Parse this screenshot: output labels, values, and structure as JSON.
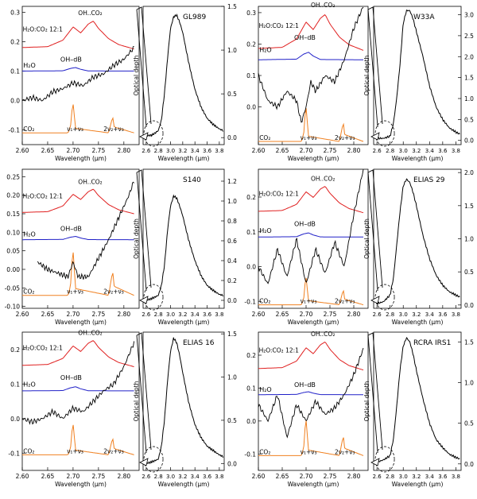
{
  "chart_data": {
    "type": "line",
    "common": {
      "x_label": "Wavelength (μm)",
      "y2_label": "Optical depth",
      "left_xlim": [
        2.6,
        2.83
      ],
      "left_xticks": [
        "2.60",
        "2.65",
        "2.70",
        "2.75",
        "2.80"
      ],
      "right_xlim": [
        2.55,
        3.88
      ],
      "right_xticks": [
        "2.6",
        "2.8",
        "3.0",
        "3.2",
        "3.4",
        "3.6",
        "3.8"
      ],
      "annotations": {
        "mixture": "H₂O:CO₂ 12:1",
        "complex": "OH..CO₂",
        "dangling": "OH–dB",
        "water": "H₂O",
        "co2": "CO₂",
        "nu1nu3": "ν₁+ν₃",
        "nu2": "2ν₂+ν₃"
      },
      "lab_series": [
        {
          "name": "H₂O:CO₂ 12:1",
          "color": "#e02020",
          "x": [
            2.6,
            2.65,
            2.68,
            2.7,
            2.715,
            2.73,
            2.74,
            2.75,
            2.77,
            2.79,
            2.82
          ],
          "shape": [
            0.05,
            0.08,
            0.3,
            0.75,
            0.55,
            0.85,
            0.95,
            0.7,
            0.35,
            0.15,
            0.0
          ]
        },
        {
          "name": "H₂O",
          "color": "#2020c8",
          "x": [
            2.6,
            2.68,
            2.695,
            2.705,
            2.715,
            2.73,
            2.82
          ],
          "shape": [
            0,
            0.05,
            0.45,
            0.6,
            0.3,
            0.02,
            0
          ]
        },
        {
          "name": "CO₂",
          "color": "#f08020",
          "x": [
            2.6,
            2.69,
            2.695,
            2.698,
            2.7,
            2.705,
            2.77,
            2.775,
            2.778,
            2.781,
            2.82
          ],
          "shape": [
            0,
            0,
            0.2,
            0.8,
            1,
            0.15,
            0,
            0.35,
            0.55,
            0.2,
            0
          ]
        }
      ]
    },
    "panels": [
      {
        "name": "GL989",
        "ylim": [
          -0.15,
          0.32
        ],
        "yticks": [
          "-0.1",
          "0.0",
          "0.1",
          "0.2",
          "0.3"
        ],
        "y2lim": [
          -0.08,
          1.5
        ],
        "y2ticks": [
          "0.0",
          "0.5",
          "1.0",
          "1.5"
        ],
        "offsets": {
          "mixture": 0.175,
          "water": 0.1,
          "co2": -0.11
        },
        "scales": {
          "mixture": 0.1,
          "water": 0.02,
          "co2": 0.1
        },
        "obs_x": [
          2.6,
          2.62,
          2.64,
          2.66,
          2.68,
          2.7,
          2.72,
          2.74,
          2.76,
          2.78,
          2.8,
          2.81,
          2.82
        ],
        "obs_y": [
          0.0,
          0.01,
          0.0,
          0.03,
          0.04,
          0.06,
          0.05,
          0.08,
          0.09,
          0.12,
          0.14,
          0.16,
          0.18
        ],
        "full_x": [
          2.6,
          2.7,
          2.8,
          2.85,
          2.9,
          2.95,
          3.0,
          3.05,
          3.1,
          3.15,
          3.2,
          3.3,
          3.4,
          3.5,
          3.6,
          3.7,
          3.8,
          3.86
        ],
        "full_y": [
          0.02,
          0.03,
          0.08,
          0.2,
          0.5,
          0.9,
          1.25,
          1.38,
          1.4,
          1.32,
          1.2,
          0.85,
          0.55,
          0.35,
          0.22,
          0.15,
          0.1,
          0.08
        ]
      },
      {
        "name": "W33A",
        "ylim": [
          -0.12,
          0.32
        ],
        "yticks": [
          "0.0",
          "0.1",
          "0.2",
          "0.3"
        ],
        "y2lim": [
          -0.1,
          3.2
        ],
        "y2ticks": [
          "0.0",
          "0.5",
          "1.0",
          "1.5",
          "2.0",
          "2.5",
          "3.0"
        ],
        "offsets": {
          "mixture": 0.18,
          "water": 0.15,
          "co2": -0.11
        },
        "scales": {
          "mixture": 0.12,
          "water": 0.04,
          "co2": 0.11
        },
        "obs_x": [
          2.6,
          2.62,
          2.64,
          2.66,
          2.68,
          2.69,
          2.7,
          2.71,
          2.72,
          2.74,
          2.76,
          2.78,
          2.8,
          2.82
        ],
        "obs_y": [
          0.1,
          0.02,
          0.0,
          0.05,
          0.02,
          -0.05,
          0.0,
          0.08,
          0.05,
          0.1,
          0.08,
          0.15,
          0.25,
          0.32
        ],
        "full_x": [
          2.6,
          2.7,
          2.8,
          2.85,
          2.9,
          2.95,
          3.0,
          3.05,
          3.1,
          3.15,
          3.2,
          3.3,
          3.4,
          3.5,
          3.6,
          3.7,
          3.8,
          3.86
        ],
        "full_y": [
          0.05,
          0.05,
          0.1,
          0.4,
          1.0,
          1.8,
          2.8,
          3.1,
          3.1,
          2.9,
          2.6,
          2.0,
          1.3,
          0.8,
          0.5,
          0.3,
          0.2,
          0.15
        ]
      },
      {
        "name": "S140",
        "ylim": [
          -0.105,
          0.27
        ],
        "yticks": [
          "-0.10",
          "-0.05",
          "0.00",
          "0.05",
          "0.10",
          "0.15",
          "0.20",
          "0.25"
        ],
        "y2lim": [
          -0.08,
          1.32
        ],
        "y2ticks": [
          "0.0",
          "0.2",
          "0.4",
          "0.6",
          "0.8",
          "1.0",
          "1.2"
        ],
        "offsets": {
          "mixture": 0.15,
          "water": 0.08,
          "co2": -0.07
        },
        "scales": {
          "mixture": 0.07,
          "water": 0.015,
          "co2": 0.12
        },
        "obs_x": [
          2.63,
          2.65,
          2.67,
          2.69,
          2.7,
          2.71,
          2.73,
          2.75,
          2.77,
          2.79,
          2.81,
          2.82
        ],
        "obs_y": [
          0.02,
          0.0,
          -0.01,
          -0.02,
          0.02,
          -0.02,
          -0.02,
          0.03,
          0.08,
          0.14,
          0.2,
          0.24
        ],
        "full_x": [
          2.6,
          2.7,
          2.8,
          2.85,
          2.9,
          2.95,
          3.0,
          3.05,
          3.1,
          3.15,
          3.2,
          3.3,
          3.4,
          3.5,
          3.6,
          3.7,
          3.8,
          3.86
        ],
        "full_y": [
          0.0,
          0.02,
          0.05,
          0.15,
          0.35,
          0.7,
          0.95,
          1.05,
          1.03,
          0.95,
          0.85,
          0.6,
          0.4,
          0.25,
          0.15,
          0.1,
          0.06,
          0.05
        ]
      },
      {
        "name": "ELIAS 29",
        "ylim": [
          -0.12,
          0.28
        ],
        "yticks": [
          "-0.1",
          "0.0",
          "0.1",
          "0.2"
        ],
        "y2lim": [
          -0.05,
          2.05
        ],
        "y2ticks": [
          "0.0",
          "0.5",
          "1.0",
          "1.5",
          "2.0"
        ],
        "offsets": {
          "mixture": 0.155,
          "water": 0.085,
          "co2": -0.11
        },
        "scales": {
          "mixture": 0.08,
          "water": 0.02,
          "co2": 0.08
        },
        "obs_x": [
          2.6,
          2.62,
          2.64,
          2.66,
          2.68,
          2.7,
          2.72,
          2.74,
          2.76,
          2.78,
          2.8,
          2.82
        ],
        "obs_y": [
          0.0,
          -0.05,
          0.05,
          -0.03,
          0.08,
          -0.05,
          0.05,
          -0.02,
          0.07,
          0.0,
          0.15,
          0.28
        ],
        "full_x": [
          2.6,
          2.7,
          2.8,
          2.85,
          2.9,
          2.95,
          3.0,
          3.05,
          3.1,
          3.15,
          3.2,
          3.3,
          3.4,
          3.5,
          3.6,
          3.7,
          3.8,
          3.86
        ],
        "full_y": [
          0.02,
          0.05,
          0.15,
          0.4,
          0.9,
          1.4,
          1.8,
          1.9,
          1.85,
          1.7,
          1.5,
          1.05,
          0.7,
          0.45,
          0.3,
          0.2,
          0.15,
          0.12
        ]
      },
      {
        "name": "ELIAS 16",
        "ylim": [
          -0.15,
          0.25
        ],
        "yticks": [
          "-0.1",
          "0.0",
          "0.1",
          "0.2"
        ],
        "y2lim": [
          -0.08,
          1.52
        ],
        "y2ticks": [
          "0.0",
          "0.5",
          "1.0",
          "1.5"
        ],
        "offsets": {
          "mixture": 0.15,
          "water": 0.08,
          "co2": -0.105
        },
        "scales": {
          "mixture": 0.08,
          "water": 0.02,
          "co2": 0.09
        },
        "obs_x": [
          2.6,
          2.62,
          2.64,
          2.66,
          2.68,
          2.7,
          2.72,
          2.74,
          2.76,
          2.78,
          2.8,
          2.82
        ],
        "obs_y": [
          0.0,
          -0.01,
          0.0,
          0.02,
          0.0,
          0.03,
          0.02,
          0.05,
          0.08,
          0.1,
          0.15,
          0.22
        ],
        "full_x": [
          2.6,
          2.7,
          2.8,
          2.85,
          2.9,
          2.95,
          3.0,
          3.05,
          3.1,
          3.15,
          3.2,
          3.3,
          3.4,
          3.5,
          3.6,
          3.7,
          3.8,
          3.86
        ],
        "full_y": [
          0.0,
          0.02,
          0.05,
          0.2,
          0.5,
          0.95,
          1.3,
          1.45,
          1.4,
          1.25,
          1.05,
          0.7,
          0.45,
          0.3,
          0.2,
          0.15,
          0.1,
          0.08
        ]
      },
      {
        "name": "RCRA IRS1",
        "ylim": [
          -0.15,
          0.27
        ],
        "yticks": [
          "-0.1",
          "0.0",
          "0.1",
          "0.2"
        ],
        "y2lim": [
          -0.08,
          1.62
        ],
        "y2ticks": [
          "0.0",
          "0.5",
          "1.0",
          "1.5"
        ],
        "offsets": {
          "mixture": 0.155,
          "water": 0.08,
          "co2": -0.105
        },
        "scales": {
          "mixture": 0.09,
          "water": 0.015,
          "co2": 0.11
        },
        "obs_x": [
          2.6,
          2.62,
          2.64,
          2.66,
          2.68,
          2.7,
          2.72,
          2.74,
          2.76,
          2.78,
          2.8,
          2.82
        ],
        "obs_y": [
          0.05,
          0.0,
          0.08,
          -0.05,
          0.05,
          0.0,
          0.06,
          0.02,
          0.04,
          0.08,
          0.14,
          0.22
        ],
        "full_x": [
          2.6,
          2.7,
          2.8,
          2.85,
          2.9,
          2.95,
          3.0,
          3.05,
          3.1,
          3.15,
          3.2,
          3.3,
          3.4,
          3.5,
          3.6,
          3.7,
          3.8,
          3.86
        ],
        "full_y": [
          0.02,
          0.05,
          0.1,
          0.3,
          0.7,
          1.15,
          1.45,
          1.55,
          1.5,
          1.35,
          1.15,
          0.8,
          0.5,
          0.3,
          0.2,
          0.12,
          0.08,
          0.06
        ]
      }
    ]
  }
}
